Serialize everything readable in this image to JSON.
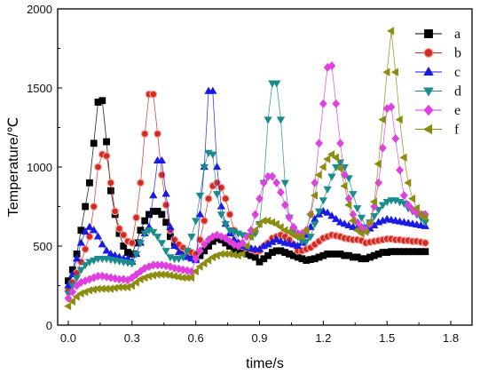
{
  "chart_data": {
    "type": "scatter",
    "xlabel": "time/s",
    "ylabel": "Temperature/℃",
    "xlim": [
      -0.05,
      1.9
    ],
    "ylim": [
      0,
      2000
    ],
    "x_ticks": [
      "0.0",
      "0.3",
      "0.6",
      "0.9",
      "1.2",
      "1.5",
      "1.8"
    ],
    "y_ticks": [
      "0",
      "500",
      "1000",
      "1500",
      "2000"
    ],
    "x_tick_values": [
      0.0,
      0.3,
      0.6,
      0.9,
      1.2,
      1.5,
      1.8
    ],
    "y_tick_values": [
      0,
      500,
      1000,
      1500,
      2000
    ],
    "grid": false,
    "legend_position": "top-right",
    "series": [
      {
        "name": "a",
        "color": "#000000",
        "marker": "square",
        "x": [
          0.0,
          0.02,
          0.04,
          0.06,
          0.08,
          0.1,
          0.12,
          0.14,
          0.16,
          0.18,
          0.2,
          0.22,
          0.24,
          0.26,
          0.28,
          0.3,
          0.32,
          0.34,
          0.36,
          0.38,
          0.4,
          0.42,
          0.44,
          0.46,
          0.48,
          0.5,
          0.52,
          0.54,
          0.56,
          0.58,
          0.6,
          0.62,
          0.64,
          0.66,
          0.68,
          0.7,
          0.72,
          0.74,
          0.76,
          0.78,
          0.8,
          0.82,
          0.84,
          0.86,
          0.88,
          0.9,
          0.92,
          0.94,
          0.96,
          0.98,
          1.0,
          1.02,
          1.04,
          1.06,
          1.08,
          1.1,
          1.12,
          1.14,
          1.16,
          1.18,
          1.2,
          1.22,
          1.24,
          1.26,
          1.28,
          1.3,
          1.32,
          1.34,
          1.36,
          1.38,
          1.4,
          1.42,
          1.44,
          1.46,
          1.48,
          1.5,
          1.52,
          1.54,
          1.56,
          1.58,
          1.6,
          1.62,
          1.64,
          1.66,
          1.68
        ],
        "y": [
          280,
          350,
          450,
          600,
          750,
          900,
          1150,
          1410,
          1420,
          1160,
          850,
          700,
          580,
          500,
          460,
          450,
          520,
          600,
          660,
          700,
          720,
          720,
          700,
          650,
          560,
          520,
          500,
          480,
          460,
          440,
          420,
          440,
          470,
          500,
          530,
          550,
          540,
          520,
          500,
          480,
          470,
          460,
          450,
          440,
          430,
          400,
          420,
          440,
          460,
          470,
          470,
          460,
          450,
          440,
          430,
          420,
          410,
          415,
          420,
          430,
          440,
          450,
          450,
          450,
          450,
          440,
          440,
          430,
          430,
          420,
          420,
          430,
          440,
          450,
          460,
          460,
          465,
          465,
          465,
          465,
          465,
          465,
          465,
          465,
          465
        ]
      },
      {
        "name": "b",
        "color": "#d22a1e",
        "marker": "circle",
        "x": [
          0.0,
          0.02,
          0.04,
          0.06,
          0.08,
          0.1,
          0.12,
          0.14,
          0.16,
          0.18,
          0.2,
          0.22,
          0.24,
          0.26,
          0.28,
          0.3,
          0.32,
          0.34,
          0.36,
          0.38,
          0.4,
          0.42,
          0.44,
          0.46,
          0.48,
          0.5,
          0.52,
          0.54,
          0.56,
          0.58,
          0.6,
          0.62,
          0.64,
          0.66,
          0.68,
          0.7,
          0.72,
          0.74,
          0.76,
          0.78,
          0.8,
          0.82,
          0.84,
          0.86,
          0.88,
          0.9,
          0.92,
          0.94,
          0.96,
          0.98,
          1.0,
          1.02,
          1.04,
          1.06,
          1.08,
          1.1,
          1.12,
          1.14,
          1.16,
          1.18,
          1.2,
          1.22,
          1.24,
          1.26,
          1.28,
          1.3,
          1.32,
          1.34,
          1.36,
          1.38,
          1.4,
          1.42,
          1.44,
          1.46,
          1.48,
          1.5,
          1.52,
          1.54,
          1.56,
          1.58,
          1.6,
          1.62,
          1.64,
          1.66,
          1.68
        ],
        "y": [
          220,
          270,
          330,
          400,
          480,
          560,
          750,
          1000,
          1080,
          1070,
          900,
          720,
          610,
          570,
          530,
          520,
          680,
          900,
          1210,
          1460,
          1460,
          1210,
          950,
          760,
          600,
          540,
          510,
          490,
          470,
          460,
          450,
          540,
          660,
          800,
          880,
          900,
          870,
          800,
          700,
          600,
          520,
          500,
          490,
          480,
          470,
          470,
          500,
          520,
          550,
          560,
          570,
          560,
          540,
          510,
          470,
          470,
          480,
          490,
          510,
          530,
          550,
          560,
          570,
          565,
          560,
          550,
          545,
          540,
          540,
          535,
          520,
          525,
          530,
          535,
          540,
          545,
          545,
          540,
          540,
          535,
          535,
          530,
          530,
          525,
          520
        ]
      },
      {
        "name": "c",
        "color": "#1a1ae6",
        "marker": "triangle-up",
        "x": [
          0.0,
          0.02,
          0.04,
          0.06,
          0.08,
          0.1,
          0.12,
          0.14,
          0.16,
          0.18,
          0.2,
          0.22,
          0.24,
          0.26,
          0.28,
          0.3,
          0.32,
          0.34,
          0.36,
          0.38,
          0.4,
          0.42,
          0.44,
          0.46,
          0.48,
          0.5,
          0.52,
          0.54,
          0.56,
          0.58,
          0.6,
          0.62,
          0.64,
          0.66,
          0.68,
          0.7,
          0.72,
          0.74,
          0.76,
          0.78,
          0.8,
          0.82,
          0.84,
          0.86,
          0.88,
          0.9,
          0.92,
          0.94,
          0.96,
          0.98,
          1.0,
          1.02,
          1.04,
          1.06,
          1.08,
          1.1,
          1.12,
          1.14,
          1.16,
          1.18,
          1.2,
          1.22,
          1.24,
          1.26,
          1.28,
          1.3,
          1.32,
          1.34,
          1.36,
          1.38,
          1.4,
          1.42,
          1.44,
          1.46,
          1.48,
          1.5,
          1.52,
          1.54,
          1.56,
          1.58,
          1.6,
          1.62,
          1.64,
          1.66,
          1.68
        ],
        "y": [
          250,
          320,
          420,
          520,
          590,
          620,
          600,
          560,
          510,
          470,
          450,
          440,
          430,
          420,
          420,
          400,
          450,
          520,
          580,
          620,
          820,
          1040,
          1040,
          830,
          620,
          500,
          460,
          440,
          430,
          420,
          410,
          700,
          1000,
          1480,
          1480,
          1000,
          750,
          640,
          580,
          540,
          520,
          500,
          490,
          485,
          480,
          480,
          500,
          510,
          525,
          540,
          530,
          520,
          515,
          510,
          500,
          520,
          570,
          620,
          670,
          700,
          720,
          710,
          690,
          670,
          650,
          640,
          630,
          620,
          615,
          610,
          600,
          610,
          630,
          650,
          660,
          670,
          665,
          660,
          655,
          650,
          645,
          640,
          635,
          630,
          625
        ]
      },
      {
        "name": "d",
        "color": "#1a8c8c",
        "marker": "triangle-down",
        "x": [
          0.0,
          0.02,
          0.04,
          0.06,
          0.08,
          0.1,
          0.12,
          0.14,
          0.16,
          0.18,
          0.2,
          0.22,
          0.24,
          0.26,
          0.28,
          0.3,
          0.32,
          0.34,
          0.36,
          0.38,
          0.4,
          0.42,
          0.44,
          0.46,
          0.48,
          0.5,
          0.52,
          0.54,
          0.56,
          0.58,
          0.6,
          0.62,
          0.64,
          0.66,
          0.68,
          0.7,
          0.72,
          0.74,
          0.76,
          0.78,
          0.8,
          0.82,
          0.84,
          0.86,
          0.88,
          0.9,
          0.92,
          0.94,
          0.96,
          0.98,
          1.0,
          1.02,
          1.04,
          1.06,
          1.08,
          1.1,
          1.12,
          1.14,
          1.16,
          1.18,
          1.2,
          1.22,
          1.24,
          1.26,
          1.28,
          1.3,
          1.32,
          1.34,
          1.36,
          1.38,
          1.4,
          1.42,
          1.44,
          1.46,
          1.48,
          1.5,
          1.52,
          1.54,
          1.56,
          1.58,
          1.6,
          1.62,
          1.64,
          1.66,
          1.68
        ],
        "y": [
          200,
          250,
          300,
          350,
          380,
          400,
          410,
          420,
          420,
          420,
          415,
          410,
          405,
          400,
          395,
          390,
          450,
          520,
          580,
          600,
          590,
          560,
          520,
          470,
          430,
          420,
          420,
          430,
          470,
          560,
          660,
          820,
          1000,
          1090,
          1080,
          830,
          700,
          640,
          600,
          590,
          580,
          570,
          565,
          560,
          580,
          640,
          900,
          1300,
          1530,
          1530,
          1300,
          900,
          680,
          600,
          560,
          530,
          530,
          560,
          640,
          720,
          790,
          860,
          940,
          1000,
          1030,
          1000,
          930,
          830,
          740,
          680,
          620,
          650,
          690,
          730,
          760,
          780,
          790,
          790,
          780,
          770,
          740,
          720,
          700,
          680,
          650
        ]
      },
      {
        "name": "e",
        "color": "#e040e0",
        "marker": "diamond",
        "x": [
          0.0,
          0.02,
          0.04,
          0.06,
          0.08,
          0.1,
          0.12,
          0.14,
          0.16,
          0.18,
          0.2,
          0.22,
          0.24,
          0.26,
          0.28,
          0.3,
          0.32,
          0.34,
          0.36,
          0.38,
          0.4,
          0.42,
          0.44,
          0.46,
          0.48,
          0.5,
          0.52,
          0.54,
          0.56,
          0.58,
          0.6,
          0.62,
          0.64,
          0.66,
          0.68,
          0.7,
          0.72,
          0.74,
          0.76,
          0.78,
          0.8,
          0.82,
          0.84,
          0.86,
          0.88,
          0.9,
          0.92,
          0.94,
          0.96,
          0.98,
          1.0,
          1.02,
          1.04,
          1.06,
          1.08,
          1.1,
          1.12,
          1.14,
          1.16,
          1.18,
          1.2,
          1.22,
          1.24,
          1.26,
          1.28,
          1.3,
          1.32,
          1.34,
          1.36,
          1.38,
          1.4,
          1.42,
          1.44,
          1.46,
          1.48,
          1.5,
          1.52,
          1.54,
          1.56,
          1.58,
          1.6,
          1.62,
          1.64,
          1.66,
          1.68
        ],
        "y": [
          170,
          210,
          250,
          270,
          280,
          290,
          300,
          310,
          310,
          305,
          300,
          295,
          290,
          290,
          285,
          300,
          320,
          340,
          360,
          370,
          380,
          380,
          380,
          375,
          370,
          360,
          355,
          350,
          345,
          340,
          420,
          470,
          510,
          540,
          560,
          570,
          560,
          550,
          530,
          510,
          500,
          520,
          560,
          600,
          700,
          800,
          900,
          940,
          940,
          900,
          840,
          760,
          680,
          620,
          580,
          580,
          600,
          700,
          900,
          1150,
          1400,
          1630,
          1640,
          1400,
          1150,
          950,
          800,
          700,
          650,
          620,
          600,
          640,
          750,
          900,
          1120,
          1370,
          1380,
          1180,
          980,
          820,
          760,
          730,
          710,
          700,
          700
        ]
      },
      {
        "name": "f",
        "color": "#8c8c10",
        "marker": "triangle-left",
        "x": [
          0.0,
          0.02,
          0.04,
          0.06,
          0.08,
          0.1,
          0.12,
          0.14,
          0.16,
          0.18,
          0.2,
          0.22,
          0.24,
          0.26,
          0.28,
          0.3,
          0.32,
          0.34,
          0.36,
          0.38,
          0.4,
          0.42,
          0.44,
          0.46,
          0.48,
          0.5,
          0.52,
          0.54,
          0.56,
          0.58,
          0.6,
          0.62,
          0.64,
          0.66,
          0.68,
          0.7,
          0.72,
          0.74,
          0.76,
          0.78,
          0.8,
          0.82,
          0.84,
          0.86,
          0.88,
          0.9,
          0.92,
          0.94,
          0.96,
          0.98,
          1.0,
          1.02,
          1.04,
          1.06,
          1.08,
          1.1,
          1.12,
          1.14,
          1.16,
          1.18,
          1.2,
          1.22,
          1.24,
          1.26,
          1.28,
          1.3,
          1.32,
          1.34,
          1.36,
          1.38,
          1.4,
          1.42,
          1.44,
          1.46,
          1.48,
          1.5,
          1.52,
          1.54,
          1.56,
          1.58,
          1.6,
          1.62,
          1.64,
          1.66,
          1.68
        ],
        "y": [
          120,
          150,
          180,
          200,
          210,
          220,
          225,
          230,
          230,
          230,
          230,
          235,
          240,
          240,
          240,
          250,
          270,
          290,
          300,
          310,
          315,
          320,
          320,
          320,
          315,
          310,
          305,
          300,
          300,
          300,
          340,
          370,
          390,
          410,
          430,
          440,
          450,
          450,
          450,
          445,
          440,
          450,
          500,
          560,
          600,
          640,
          660,
          660,
          650,
          640,
          620,
          600,
          590,
          570,
          560,
          560,
          600,
          700,
          820,
          950,
          1000,
          1050,
          1080,
          1060,
          990,
          880,
          760,
          660,
          600,
          580,
          590,
          650,
          780,
          1020,
          1300,
          1600,
          1860,
          1600,
          1300,
          1060,
          900,
          800,
          740,
          700,
          680
        ]
      }
    ]
  }
}
